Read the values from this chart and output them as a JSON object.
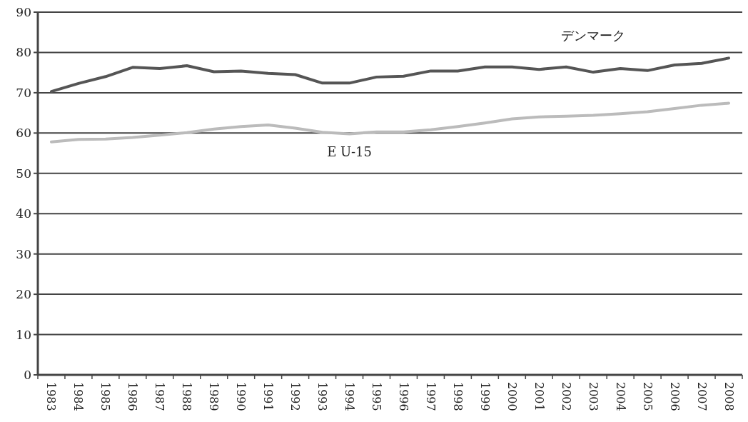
{
  "chart_data": {
    "type": "line",
    "categories": [
      "1983",
      "1984",
      "1985",
      "1986",
      "1987",
      "1988",
      "1989",
      "1990",
      "1991",
      "1992",
      "1993",
      "1994",
      "1995",
      "1996",
      "1997",
      "1998",
      "1999",
      "2000",
      "2001",
      "2002",
      "2003",
      "2004",
      "2005",
      "2006",
      "2007",
      "2008"
    ],
    "series": [
      {
        "name": "デンマーク",
        "color": "#555555",
        "values": [
          70.3,
          72.3,
          74,
          76.3,
          76,
          76.7,
          75.2,
          75.4,
          74.8,
          74.5,
          72.4,
          72.4,
          73.9,
          74.1,
          75.4,
          75.4,
          76.4,
          76.4,
          75.8,
          76.4,
          75.1,
          76,
          75.5,
          76.9,
          77.3,
          78.6
        ]
      },
      {
        "name": "E U-15",
        "color": "#bbbbbb",
        "values": [
          57.8,
          58.4,
          58.5,
          58.9,
          59.5,
          60.1,
          61,
          61.6,
          62,
          61.2,
          60.2,
          59.8,
          60.3,
          60.3,
          60.8,
          61.6,
          62.5,
          63.5,
          64,
          64.2,
          64.4,
          64.8,
          65.3,
          66.1,
          66.9,
          67.4
        ]
      }
    ],
    "ylim": [
      0,
      90
    ],
    "yticks": [
      0,
      10,
      20,
      30,
      40,
      50,
      60,
      70,
      80,
      90
    ],
    "grid": "y",
    "marker": "none",
    "line_style": "solid"
  }
}
